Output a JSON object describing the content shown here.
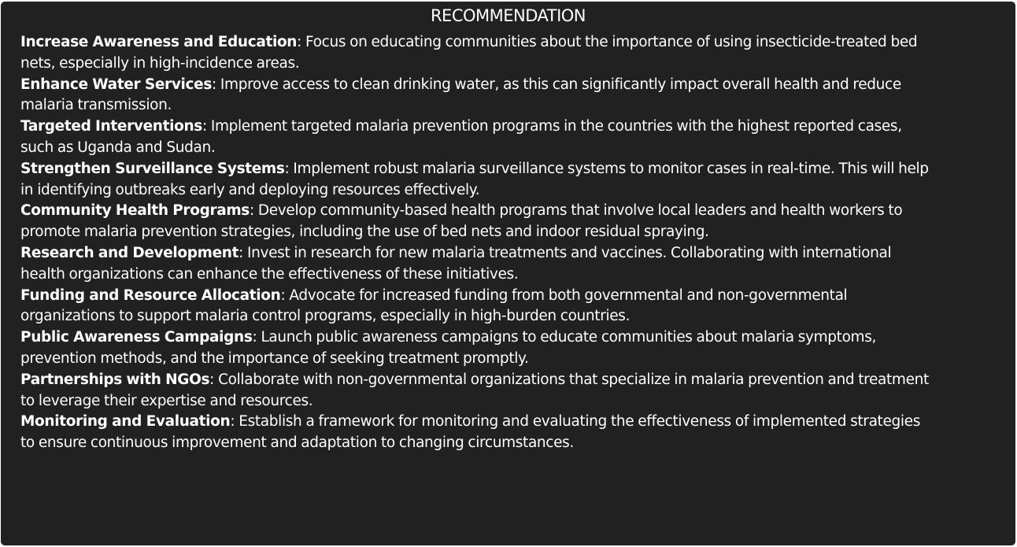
{
  "title": "RECOMMENDATION",
  "items": [
    {
      "heading": "Increase Awareness and Education",
      "line1": ": Focus on educating communities about the importance of using insecticide-treated bed",
      "line2": "nets, especially in high-incidence areas."
    },
    {
      "heading": "Enhance Water Services",
      "line1": ": Improve access to clean drinking water, as this can significantly impact overall health and reduce",
      "line2": "malaria transmission."
    },
    {
      "heading": "Targeted Interventions",
      "line1": ": Implement targeted malaria prevention programs in the countries with the highest reported cases,",
      "line2": "such as Uganda and Sudan."
    },
    {
      "heading": "Strengthen Surveillance Systems",
      "line1": ": Implement robust malaria surveillance systems to monitor cases in real-time. This will help",
      "line2": "in identifying outbreaks early and deploying resources effectively."
    },
    {
      "heading": "Community Health Programs",
      "line1": ": Develop community-based health programs that involve local leaders and health workers to",
      "line2": "promote malaria prevention strategies, including the use of bed nets and indoor residual spraying."
    },
    {
      "heading": "Research and Development",
      "line1": ": Invest in research for new malaria treatments and vaccines. Collaborating with international",
      "line2": "health organizations can enhance the effectiveness of these initiatives."
    },
    {
      "heading": "Funding and Resource Allocation",
      "line1": ": Advocate for increased funding from both governmental and non-governmental",
      "line2": "organizations to support malaria control programs, especially in high-burden countries."
    },
    {
      "heading": "Public Awareness Campaigns",
      "line1": ": Launch public awareness campaigns to educate communities about malaria symptoms,",
      "line2": "prevention methods, and the importance of seeking treatment promptly."
    },
    {
      "heading": "Partnerships with NGOs",
      "line1": ": Collaborate with non-governmental organizations that specialize in malaria prevention and treatment",
      "line2": "to leverage their expertise and resources."
    },
    {
      "heading": "Monitoring and Evaluation",
      "line1": ": Establish a framework for monitoring and evaluating the effectiveness of implemented strategies",
      "line2": "to ensure continuous improvement and adaptation to changing circumstances."
    }
  ]
}
